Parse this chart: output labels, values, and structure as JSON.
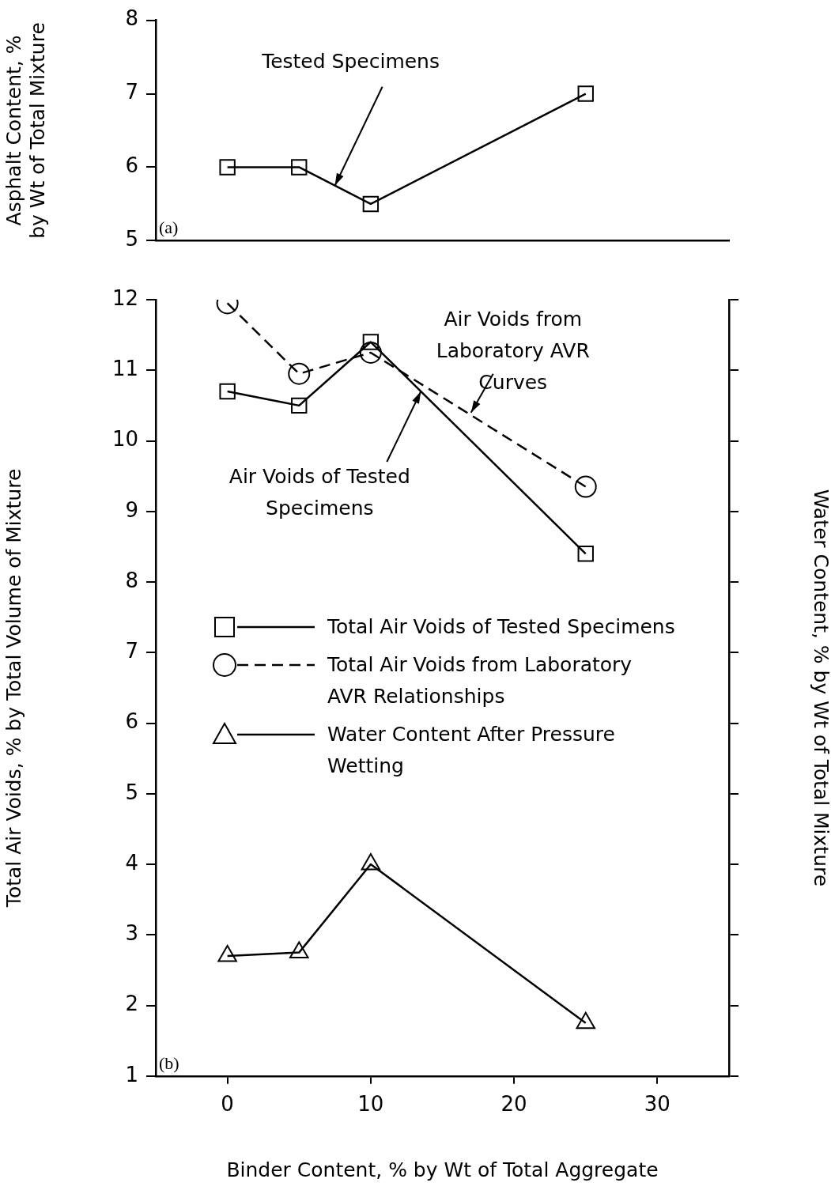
{
  "chart_data": [
    {
      "type": "line",
      "ylabel": "Asphalt Content, % by Wt of Total Mixture",
      "x": [
        0,
        5,
        10,
        25
      ],
      "xlim": [
        -5,
        35
      ],
      "xticks": [
        0,
        10,
        20,
        30
      ],
      "ylim": [
        5,
        8
      ],
      "yticks": [
        5,
        6,
        7,
        8
      ],
      "tick_labels": "y",
      "grid": false,
      "legend": false,
      "series": [
        {
          "color": "#000000",
          "values": [
            6,
            6,
            5.5,
            7
          ],
          "marker": "square",
          "line_style": "solid"
        }
      ],
      "annotations": [
        {
          "text": "Tested Specimens",
          "x": 7.5,
          "y": 5.75
        },
        "(a)"
      ]
    },
    {
      "type": "line",
      "xlabel": "Binder Content, % by Wt of Total Aggregate",
      "ylabel": "Total Air Voids, % by Total Volume of Mixture",
      "y2label": "Water Content, % by Wt of Total Mixture",
      "x": [
        0,
        5,
        10,
        25
      ],
      "xlim": [
        -5,
        35
      ],
      "xticks": [
        0,
        10,
        20,
        30
      ],
      "ylim": [
        1,
        12
      ],
      "yticks": [
        1,
        2,
        3,
        4,
        5,
        6,
        7,
        8,
        9,
        10,
        11,
        12
      ],
      "grid": false,
      "legend": "center",
      "series": [
        {
          "name": "Total Air Voids of Tested Specimens",
          "color": "#000000",
          "values": [
            10.7,
            10.5,
            11.4,
            8.4
          ],
          "marker": "square",
          "line_style": "solid"
        },
        {
          "name": "Total Air Voids from Laboratory AVR Relationships",
          "color": "#000000",
          "values": [
            11.95,
            10.95,
            11.25,
            9.35
          ],
          "marker": "circle",
          "line_style": "dashed"
        },
        {
          "name": "Water Content After Pressure Wetting",
          "color": "#000000",
          "values": [
            2.7,
            2.75,
            4.0,
            1.75
          ],
          "marker": "triangle",
          "line_style": "solid"
        }
      ],
      "annotations": [
        {
          "text": "Air Voids from Laboratory AVR Curves",
          "x": 17,
          "y": 10.4
        },
        {
          "text": "Air Voids of Tested Specimens",
          "x": 13.5,
          "y": 10.7
        },
        "(b)"
      ]
    }
  ]
}
